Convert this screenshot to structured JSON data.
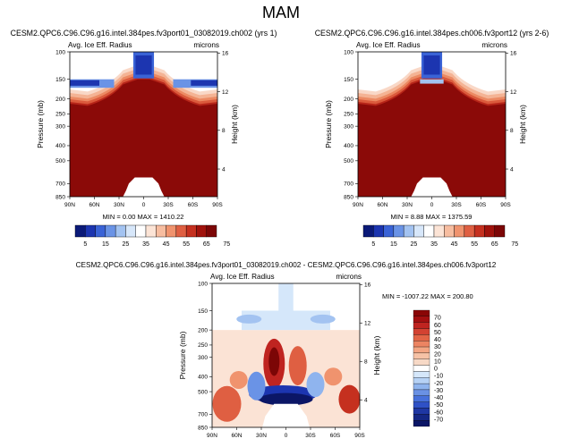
{
  "page_title": "MAM",
  "colors": {
    "deep_red": "#8b0a08",
    "cb_pos": [
      "#f7d9c6",
      "#f6c2a6",
      "#f3a583",
      "#ec8462",
      "#e26446",
      "#d34232",
      "#bf2420",
      "#a30f10",
      "#8a0606"
    ],
    "cb_neg": [
      "#d5e7fa",
      "#b6d2f5",
      "#8fb4ee",
      "#6a91e4",
      "#4770db",
      "#2f51c6",
      "#1f37a3",
      "#152784",
      "#0b1666"
    ],
    "abs_levels": [
      "#0b1a78",
      "#1c35b0",
      "#3a63d6",
      "#6a93e6",
      "#a3c3f1",
      "#d7e7fa",
      "#ffffff",
      "#fce4d6",
      "#f7bda0",
      "#f0936e",
      "#df5f42",
      "#c5301f",
      "#a0120c",
      "#7c0606"
    ]
  },
  "chart_data": [
    {
      "type": "heatmap",
      "title": "CESM2.QPC6.C96.C96.g16.intel.384pes.fv3port01_03082019.ch002 (yrs 1)",
      "left_label": "Avg. Ice Eff. Radius",
      "right_label": "microns",
      "ylabel": "Pressure (mb)",
      "ylabel_right": "Height (km)",
      "x_ticks": [
        "90N",
        "60N",
        "30N",
        "0",
        "30S",
        "60S",
        "90S"
      ],
      "y_ticks": [
        "100",
        "150",
        "200",
        "250",
        "300",
        "400",
        "500",
        "700",
        "850"
      ],
      "y_right_ticks": [
        "16",
        "12",
        "8",
        "4"
      ],
      "stats": "MIN =   0.00  MAX = 1410.22",
      "fill_top_pressure_mb": 260,
      "fill_description": "saturated dark red below ~260 mb, blue high-latitude band near 150 mb, blue tropopause column at 100 mb, white region near surface at equator"
    },
    {
      "type": "heatmap",
      "title": "CESM2.QPC6.C96.C96.g16.intel.384pes.ch006.fv3port12 (yrs 2-6)",
      "left_label": "Avg. Ice Eff. Radius",
      "right_label": "microns",
      "ylabel": "Pressure (mb)",
      "ylabel_right": "Height (km)",
      "x_ticks": [
        "90N",
        "60N",
        "30N",
        "0",
        "30S",
        "60S",
        "90S"
      ],
      "y_ticks": [
        "100",
        "150",
        "200",
        "250",
        "300",
        "400",
        "500",
        "700",
        "850"
      ],
      "y_right_ticks": [
        "16",
        "12",
        "8",
        "4"
      ],
      "stats": "MIN =   8.88  MAX = 1375.59"
    },
    {
      "type": "colorbar",
      "labels": [
        "5",
        "15",
        "25",
        "35",
        "45",
        "55",
        "65",
        "75"
      ]
    },
    {
      "type": "heatmap",
      "title": "CESM2.QPC6.C96.C96.g16.intel.384pes.fv3port01_03082019.ch002 - CESM2.QPC6.C96.C96.g16.intel.384pes.ch006.fv3port12",
      "left_label": "Avg. Ice Eff. Radius",
      "right_label": "microns",
      "ylabel": "Pressure (mb)",
      "ylabel_right": "Height (km)",
      "x_ticks": [
        "90N",
        "60N",
        "30N",
        "0",
        "30S",
        "60S",
        "90S"
      ],
      "y_ticks": [
        "100",
        "150",
        "200",
        "250",
        "300",
        "400",
        "500",
        "700",
        "850"
      ],
      "y_right_ticks": [
        "16",
        "12",
        "8",
        "4"
      ],
      "stats": "MIN = -1007.22  MAX = 200.80",
      "colorbar_labels": [
        "70",
        "60",
        "50",
        "40",
        "30",
        "20",
        "10",
        "0",
        "-10",
        "-20",
        "-30",
        "-40",
        "-50",
        "-60",
        "-70"
      ]
    }
  ]
}
